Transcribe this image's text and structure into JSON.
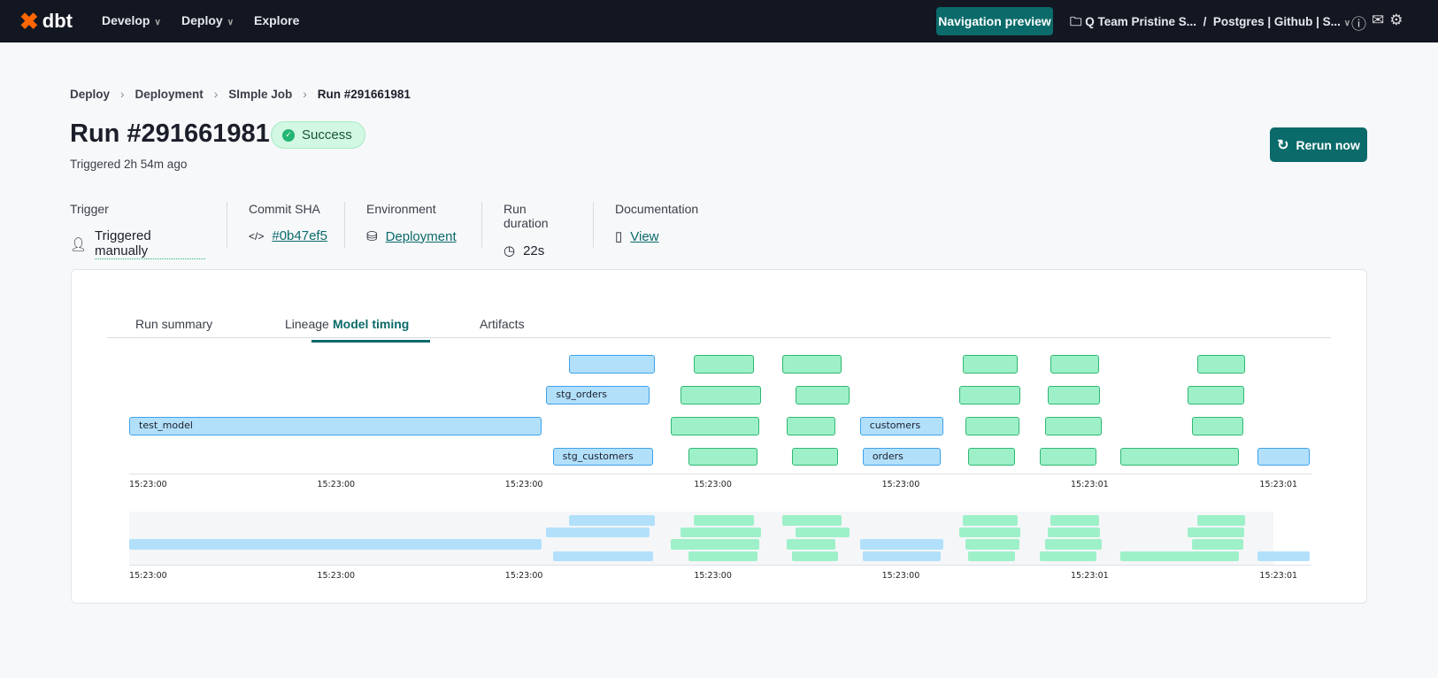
{
  "nav": {
    "logo": "dbt",
    "items": [
      {
        "label": "Develop",
        "dropdown": true
      },
      {
        "label": "Deploy",
        "dropdown": true
      },
      {
        "label": "Explore",
        "dropdown": false
      }
    ],
    "preview_button": "Navigation preview",
    "project": "Q Team Pristine S...",
    "separator": "/",
    "connection": "Postgres | Github | S...",
    "icons": [
      "help-icon",
      "chat-icon",
      "gear-icon"
    ]
  },
  "breadcrumb": [
    "Deploy",
    "Deployment",
    "SImple Job",
    "Run #291661981"
  ],
  "run": {
    "title": "Run #291661981",
    "status": "Success",
    "triggered": "Triggered 2h 54m ago",
    "rerun": "Rerun now"
  },
  "meta": [
    {
      "label": "Trigger",
      "value": "Triggered manually",
      "icon": "user-icon",
      "link": false
    },
    {
      "label": "Commit SHA",
      "value": "#0b47ef5",
      "icon": "code-icon",
      "link": true
    },
    {
      "label": "Environment",
      "value": "Deployment",
      "icon": "database-icon",
      "link": true
    },
    {
      "label": "Run duration",
      "value": "22s",
      "icon": "clock-icon",
      "link": false
    },
    {
      "label": "Documentation",
      "value": "View",
      "icon": "book-icon",
      "link": true
    }
  ],
  "tabs": [
    {
      "label": "Run summary"
    },
    {
      "label": "Lineage"
    },
    {
      "label": "Model timing",
      "active": true
    },
    {
      "label": "Artifacts"
    }
  ],
  "timing": {
    "axis_ticks": [
      "15:23:00",
      "15:23:00",
      "15:23:00",
      "15:23:00",
      "15:23:00",
      "15:23:01",
      "15:23:01"
    ],
    "bar_labels": {
      "test_model": "test_model",
      "stg_orders": "stg_orders",
      "stg_customers": "stg_customers",
      "customers": "customers",
      "orders": "orders"
    },
    "colors": {
      "model": "#b2e0fb",
      "test": "#9ef0c9"
    }
  }
}
